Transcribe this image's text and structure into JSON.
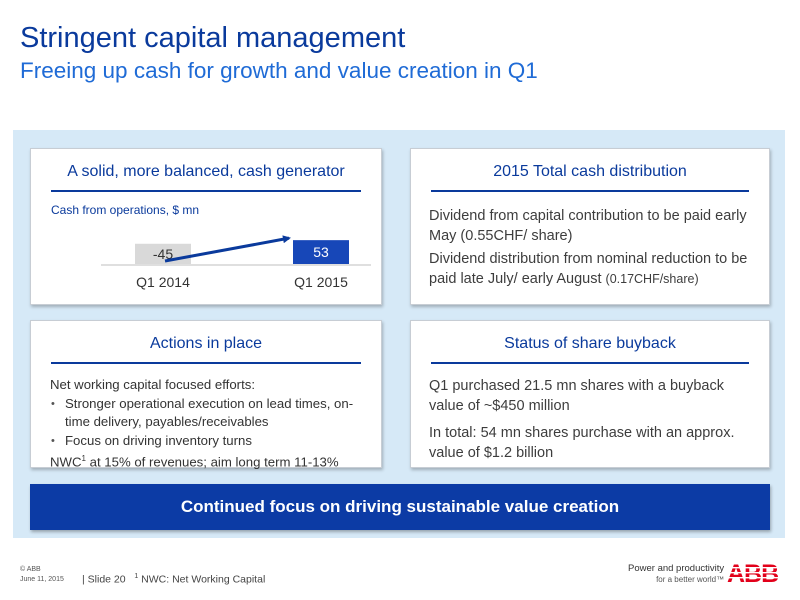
{
  "header": {
    "title": "Stringent capital management",
    "subtitle": "Freeing up cash for growth and value creation in Q1"
  },
  "cash_generator": {
    "title": "A solid, more balanced, cash generator",
    "chart_label": "Cash from operations, $ mn",
    "chart_data": {
      "type": "bar",
      "categories": [
        "Q1 2014",
        "Q1 2015"
      ],
      "values": [
        -45,
        53
      ],
      "title": "Cash from operations, $ mn",
      "data_labels": [
        "-45",
        "53"
      ],
      "colors": [
        "#d9d9d9",
        "#1747b8"
      ]
    }
  },
  "cash_distribution": {
    "title": "2015 Total cash distribution",
    "para1": "Dividend from capital contribution to be paid early May (0.55CHF/ share)",
    "para2_main": "Dividend distribution from nominal reduction to be paid late July/ early August ",
    "para2_small": "(0.17CHF/share)"
  },
  "actions": {
    "title": "Actions in place",
    "intro": "Net working capital focused efforts:",
    "bullets": [
      "Stronger operational execution on lead times, on-time delivery, payables/receivables",
      "Focus on driving inventory turns"
    ],
    "nwc_prefix": "NWC",
    "nwc_sup": "1",
    "nwc_rest": " at 15% of revenues; aim long term 11-13%"
  },
  "buyback": {
    "title": "Status of share buyback",
    "para1": "Q1 purchased 21.5 mn shares with a buyback value of ~$450 million",
    "para2": "In total: 54 mn shares purchase with an approx. value of $1.2 billion"
  },
  "banner": {
    "text": "Continued focus on driving sustainable value creation"
  },
  "footer": {
    "copyright": "© ABB",
    "date": "June 11, 2015",
    "slide": "| Slide 20",
    "footnote_sup": "1",
    "footnote": " NWC: Net Working Capital",
    "tagline1": "Power and productivity",
    "tagline2": "for a better world™",
    "logo_text": "ABB",
    "logo_color": "#e2001a"
  }
}
